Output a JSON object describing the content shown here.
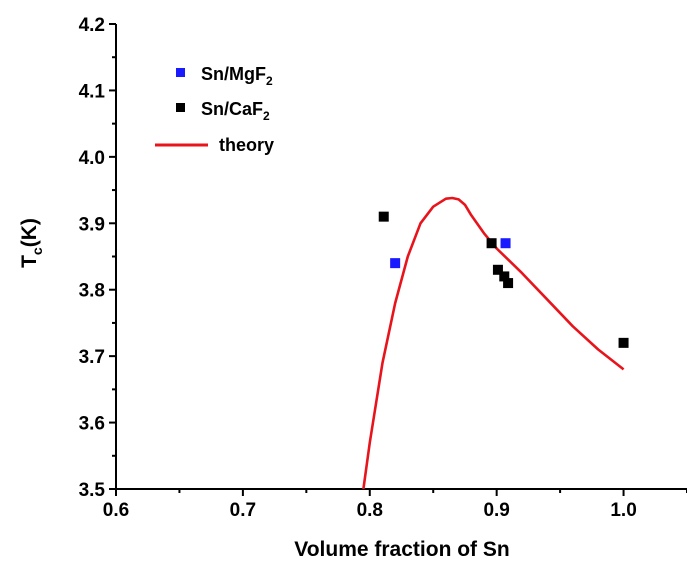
{
  "chart_data": {
    "type": "scatter",
    "title": "",
    "xlabel": "Volume fraction of Sn",
    "ylabel_main": "T",
    "ylabel_sub": "c",
    "ylabel_rest": "(K)",
    "xlim": [
      0.6,
      1.05
    ],
    "ylim": [
      3.5,
      4.2
    ],
    "x_ticks": [
      "0.6",
      "0.7",
      "0.8",
      "0.9",
      "1.0"
    ],
    "x_tick_values": [
      0.6,
      0.7,
      0.8,
      0.9,
      1.0
    ],
    "y_ticks": [
      "3.5",
      "3.6",
      "3.7",
      "3.8",
      "3.9",
      "4.0",
      "4.1",
      "4.2"
    ],
    "y_tick_values": [
      3.5,
      3.6,
      3.7,
      3.8,
      3.9,
      4.0,
      4.1,
      4.2
    ],
    "grid": false,
    "legend_position": "top-left",
    "series": [
      {
        "name": "Sn/MgF",
        "name_sub": "2",
        "kind": "scatter",
        "color": "#1a1aff",
        "x": [
          0.82,
          0.907
        ],
        "y": [
          3.84,
          3.87
        ]
      },
      {
        "name": "Sn/CaF",
        "name_sub": "2",
        "kind": "scatter",
        "color": "#000000",
        "x": [
          0.811,
          0.896,
          0.901,
          0.906,
          0.909,
          1.0
        ],
        "y": [
          3.91,
          3.87,
          3.83,
          3.82,
          3.81,
          3.72
        ]
      },
      {
        "name": "theory",
        "kind": "line",
        "color": "#e8141c",
        "x": [
          0.795,
          0.8,
          0.81,
          0.82,
          0.83,
          0.84,
          0.85,
          0.86,
          0.865,
          0.87,
          0.875,
          0.88,
          0.89,
          0.9,
          0.92,
          0.94,
          0.96,
          0.98,
          1.0
        ],
        "y": [
          3.5,
          3.57,
          3.69,
          3.78,
          3.85,
          3.9,
          3.925,
          3.937,
          3.938,
          3.936,
          3.928,
          3.912,
          3.885,
          3.862,
          3.825,
          3.785,
          3.745,
          3.71,
          3.68
        ]
      }
    ]
  }
}
